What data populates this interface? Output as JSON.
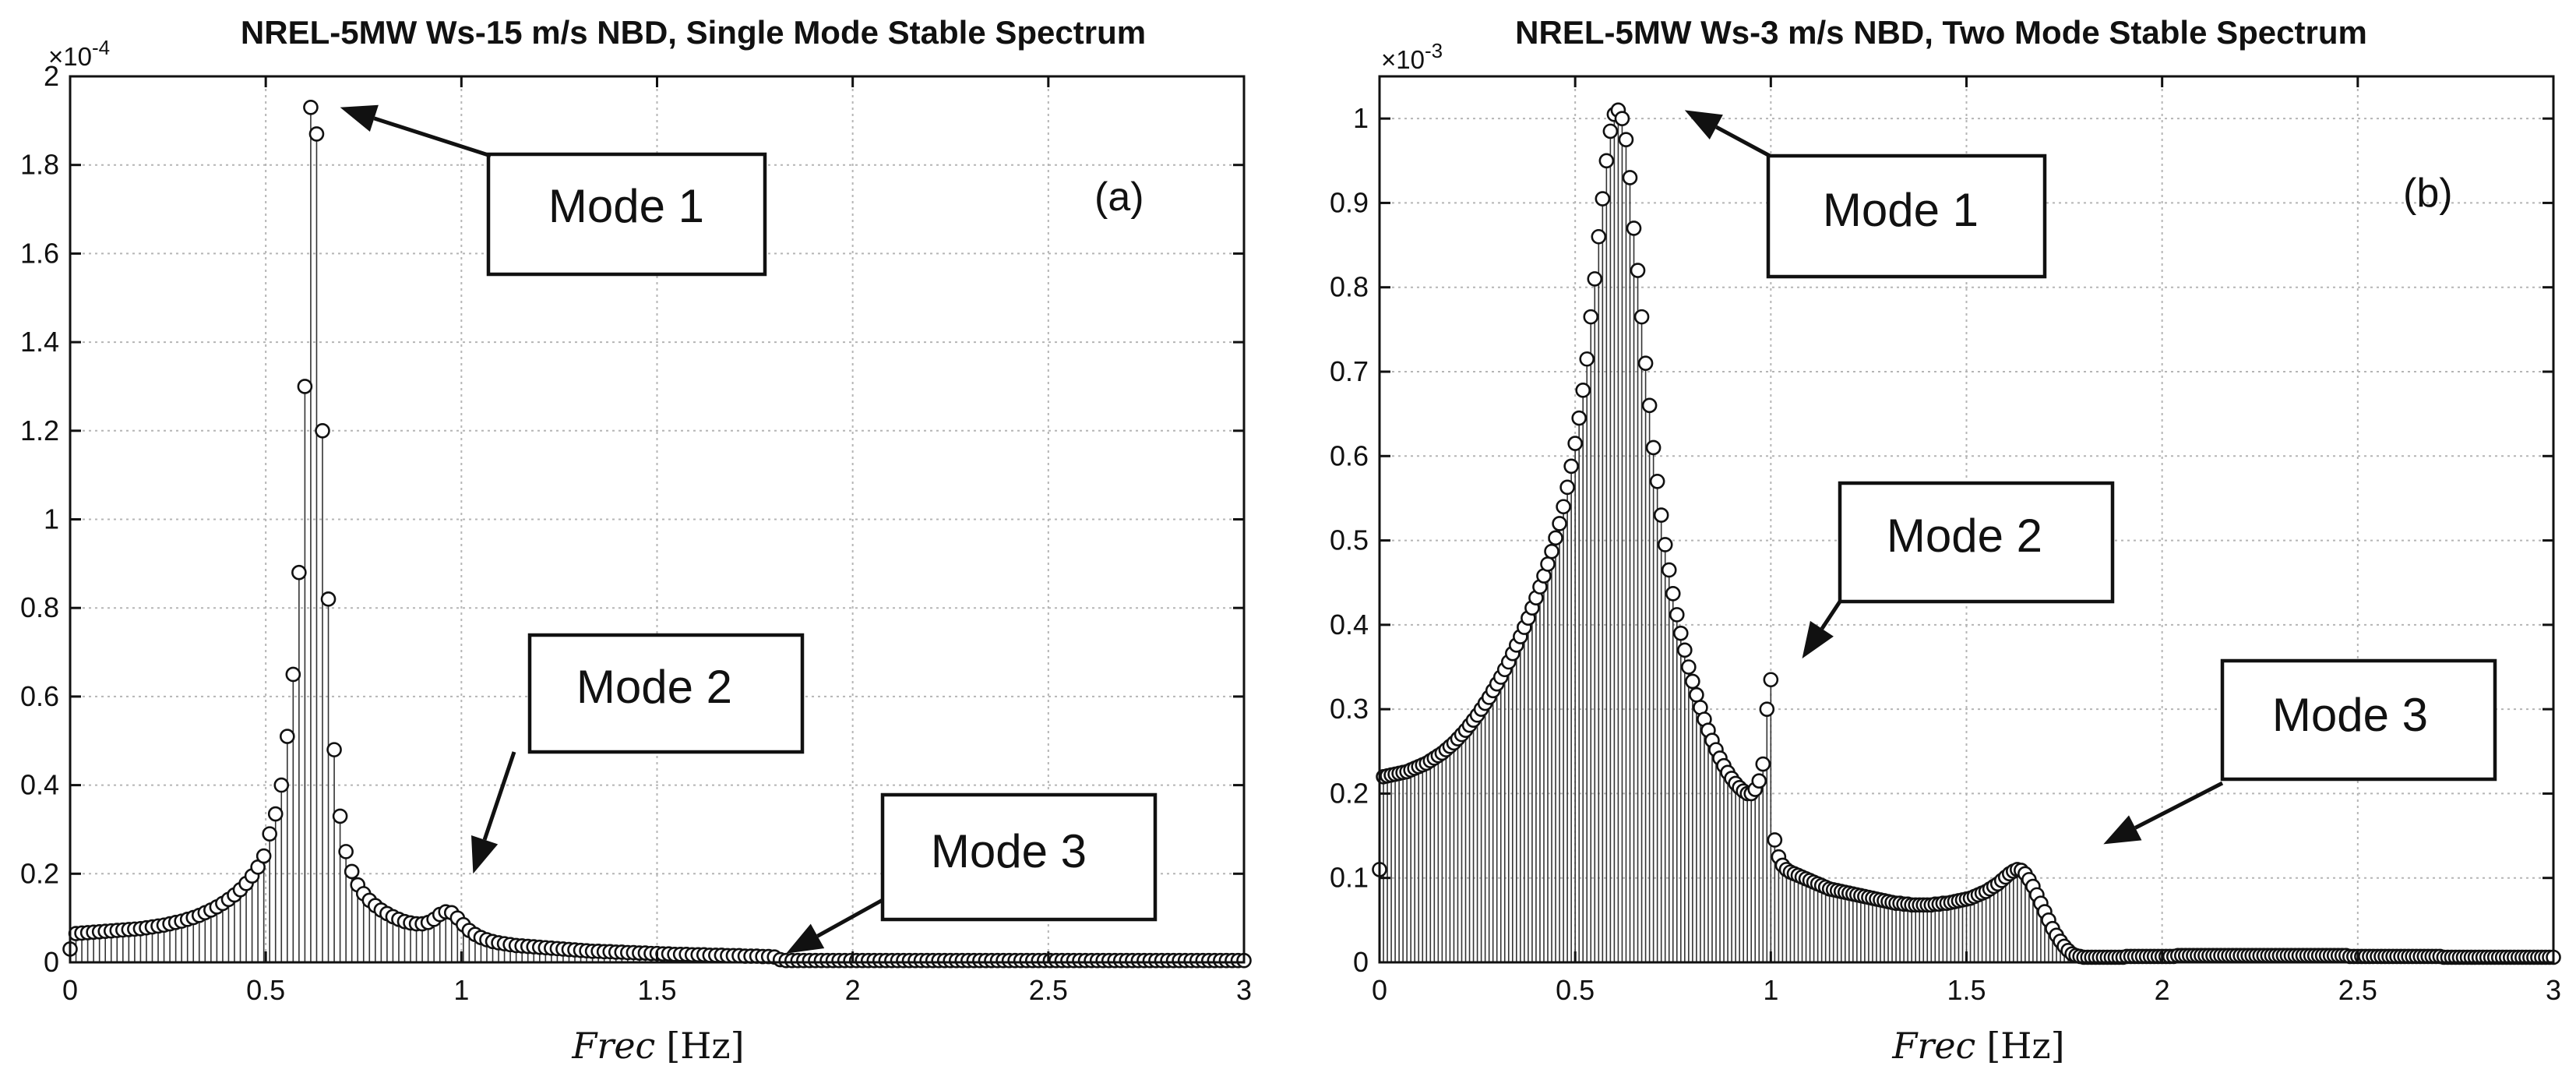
{
  "chart_data": [
    {
      "id": "a",
      "type": "stem",
      "title": "NREL-5MW Ws-15 m/s NBD, Single Mode Stable Spectrum",
      "xlabel_italic": "Frec",
      "xlabel_unit": "[Hz]",
      "ylabel": "",
      "panel_label": "(a)",
      "xlim": [
        0,
        3
      ],
      "ylim": [
        0,
        2
      ],
      "y_exponent_label": "×10",
      "y_exponent_value": "-4",
      "x_ticks": [
        0,
        0.5,
        1,
        1.5,
        2,
        2.5,
        3
      ],
      "x_tick_labels": [
        "0",
        "0.5",
        "1",
        "1.5",
        "2",
        "2.5",
        "3"
      ],
      "y_ticks": [
        0,
        0.2,
        0.4,
        0.6,
        0.8,
        1,
        1.2,
        1.4,
        1.6,
        1.8,
        2
      ],
      "y_tick_labels": [
        "0",
        "0.2",
        "0.4",
        "0.6",
        "0.8",
        "1",
        "1.2",
        "1.4",
        "1.6",
        "1.8",
        "2"
      ],
      "grid": true,
      "series": [
        {
          "name": "spectrum",
          "x_start": 0,
          "x_step": 0.015,
          "values": [
            0.03,
            0.065,
            0.066,
            0.067,
            0.068,
            0.069,
            0.07,
            0.071,
            0.072,
            0.073,
            0.074,
            0.075,
            0.076,
            0.078,
            0.08,
            0.082,
            0.084,
            0.087,
            0.09,
            0.093,
            0.097,
            0.101,
            0.106,
            0.112,
            0.118,
            0.125,
            0.133,
            0.142,
            0.152,
            0.164,
            0.178,
            0.195,
            0.215,
            0.24,
            0.29,
            0.335,
            0.4,
            0.51,
            0.65,
            0.88,
            1.3,
            1.93,
            1.87,
            1.2,
            0.82,
            0.48,
            0.33,
            0.25,
            0.205,
            0.175,
            0.155,
            0.14,
            0.128,
            0.118,
            0.11,
            0.103,
            0.097,
            0.092,
            0.089,
            0.087,
            0.087,
            0.09,
            0.097,
            0.108,
            0.114,
            0.112,
            0.1,
            0.085,
            0.072,
            0.063,
            0.056,
            0.051,
            0.047,
            0.044,
            0.042,
            0.04,
            0.038,
            0.037,
            0.036,
            0.035,
            0.034,
            0.033,
            0.032,
            0.031,
            0.03,
            0.029,
            0.028,
            0.027,
            0.026,
            0.025,
            0.025,
            0.024,
            0.024,
            0.023,
            0.023,
            0.022,
            0.022,
            0.021,
            0.021,
            0.02,
            0.02,
            0.019,
            0.019,
            0.018,
            0.018,
            0.018,
            0.017,
            0.017,
            0.017,
            0.016,
            0.016,
            0.016,
            0.015,
            0.015,
            0.015,
            0.014,
            0.014,
            0.014,
            0.013,
            0.013,
            0.012,
            0.006,
            0.004,
            0.004,
            0.004,
            0.004,
            0.004,
            0.004,
            0.004,
            0.004,
            0.004,
            0.004,
            0.004,
            0.004,
            0.004,
            0.004,
            0.004,
            0.004,
            0.004,
            0.004,
            0.004,
            0.004,
            0.004,
            0.004,
            0.004,
            0.004,
            0.004,
            0.004,
            0.004,
            0.004,
            0.004,
            0.004,
            0.004,
            0.004,
            0.004,
            0.004,
            0.004,
            0.004,
            0.004,
            0.004,
            0.004,
            0.004,
            0.004,
            0.004,
            0.004,
            0.004,
            0.004,
            0.004,
            0.004,
            0.004,
            0.004,
            0.004,
            0.004,
            0.004,
            0.004,
            0.004,
            0.004,
            0.004,
            0.004,
            0.004,
            0.004,
            0.004,
            0.004,
            0.004,
            0.004,
            0.004,
            0.004,
            0.004,
            0.004,
            0.004,
            0.004,
            0.004,
            0.004,
            0.004,
            0.004,
            0.004,
            0.004,
            0.004,
            0.004,
            0.004,
            0.004,
            0.004,
            0.004,
            0.004
          ]
        }
      ],
      "annotations": [
        {
          "text": "Mode 1",
          "points_to": [
            0.69,
            1.93
          ]
        },
        {
          "text": "Mode 2",
          "points_to": [
            1.03,
            0.2
          ]
        },
        {
          "text": "Mode 3",
          "points_to": [
            1.83,
            0.02
          ]
        }
      ]
    },
    {
      "id": "b",
      "type": "stem",
      "title": "NREL-5MW Ws-3 m/s NBD, Two Mode Stable Spectrum",
      "xlabel_italic": "Frec",
      "xlabel_unit": "[Hz]",
      "ylabel": "",
      "panel_label": "(b)",
      "xlim": [
        0,
        3
      ],
      "ylim": [
        0,
        1.05
      ],
      "y_exponent_label": "×10",
      "y_exponent_value": "-3",
      "x_ticks": [
        0,
        0.5,
        1,
        1.5,
        2,
        2.5,
        3
      ],
      "x_tick_labels": [
        "0",
        "0.5",
        "1",
        "1.5",
        "2",
        "2.5",
        "3"
      ],
      "y_ticks": [
        0,
        0.1,
        0.2,
        0.3,
        0.4,
        0.5,
        0.6,
        0.7,
        0.8,
        0.9,
        1
      ],
      "y_tick_labels": [
        "0",
        "0.1",
        "0.2",
        "0.3",
        "0.4",
        "0.5",
        "0.6",
        "0.7",
        "0.8",
        "0.9",
        "1"
      ],
      "grid": true,
      "series": [
        {
          "name": "spectrum",
          "x_start": 0,
          "x_step": 0.01,
          "values": [
            0.11,
            0.22,
            0.221,
            0.222,
            0.223,
            0.224,
            0.225,
            0.226,
            0.228,
            0.23,
            0.232,
            0.234,
            0.236,
            0.239,
            0.242,
            0.245,
            0.248,
            0.252,
            0.256,
            0.26,
            0.265,
            0.27,
            0.275,
            0.281,
            0.287,
            0.293,
            0.3,
            0.307,
            0.314,
            0.322,
            0.33,
            0.338,
            0.347,
            0.356,
            0.366,
            0.376,
            0.386,
            0.397,
            0.408,
            0.42,
            0.432,
            0.445,
            0.458,
            0.472,
            0.487,
            0.503,
            0.52,
            0.54,
            0.563,
            0.588,
            0.615,
            0.645,
            0.678,
            0.715,
            0.765,
            0.81,
            0.86,
            0.905,
            0.95,
            0.985,
            1.005,
            1.01,
            1.0,
            0.975,
            0.93,
            0.87,
            0.82,
            0.765,
            0.71,
            0.66,
            0.61,
            0.57,
            0.53,
            0.495,
            0.465,
            0.437,
            0.412,
            0.39,
            0.37,
            0.35,
            0.333,
            0.317,
            0.302,
            0.288,
            0.275,
            0.263,
            0.252,
            0.242,
            0.233,
            0.225,
            0.218,
            0.212,
            0.207,
            0.203,
            0.2,
            0.2,
            0.205,
            0.215,
            0.235,
            0.3,
            0.335,
            0.145,
            0.125,
            0.115,
            0.11,
            0.107,
            0.105,
            0.103,
            0.101,
            0.099,
            0.097,
            0.095,
            0.093,
            0.091,
            0.089,
            0.087,
            0.086,
            0.085,
            0.084,
            0.083,
            0.082,
            0.081,
            0.08,
            0.079,
            0.078,
            0.077,
            0.076,
            0.075,
            0.074,
            0.073,
            0.072,
            0.071,
            0.07,
            0.07,
            0.069,
            0.069,
            0.068,
            0.068,
            0.068,
            0.068,
            0.068,
            0.068,
            0.069,
            0.069,
            0.07,
            0.07,
            0.071,
            0.072,
            0.073,
            0.074,
            0.075,
            0.076,
            0.078,
            0.08,
            0.082,
            0.084,
            0.087,
            0.09,
            0.093,
            0.097,
            0.101,
            0.105,
            0.108,
            0.11,
            0.109,
            0.105,
            0.098,
            0.09,
            0.08,
            0.07,
            0.06,
            0.05,
            0.04,
            0.032,
            0.025,
            0.019,
            0.014,
            0.01,
            0.008,
            0.007,
            0.006,
            0.006,
            0.006,
            0.006,
            0.006,
            0.006,
            0.006,
            0.006,
            0.006,
            0.006,
            0.006,
            0.007,
            0.007,
            0.007,
            0.007,
            0.007,
            0.007,
            0.007,
            0.007,
            0.007,
            0.007,
            0.007,
            0.007,
            0.007,
            0.008,
            0.008,
            0.008,
            0.008,
            0.008,
            0.008,
            0.008,
            0.008,
            0.008,
            0.008,
            0.008,
            0.008,
            0.008,
            0.008,
            0.008,
            0.008,
            0.008,
            0.008,
            0.008,
            0.008,
            0.008,
            0.008,
            0.008,
            0.008,
            0.008,
            0.008,
            0.008,
            0.008,
            0.008,
            0.008,
            0.008,
            0.008,
            0.008,
            0.008,
            0.008,
            0.008,
            0.008,
            0.008,
            0.008,
            0.008,
            0.008,
            0.008,
            0.008,
            0.008,
            0.007,
            0.007,
            0.007,
            0.007,
            0.007,
            0.007,
            0.007,
            0.007,
            0.007,
            0.007,
            0.007,
            0.007,
            0.007,
            0.007,
            0.007,
            0.007,
            0.007,
            0.007,
            0.007,
            0.007,
            0.007,
            0.007,
            0.007,
            0.007,
            0.006,
            0.006,
            0.006,
            0.006,
            0.006,
            0.006,
            0.006,
            0.006,
            0.006,
            0.006,
            0.006,
            0.006,
            0.006,
            0.006,
            0.006,
            0.006,
            0.006,
            0.006,
            0.006,
            0.006,
            0.006,
            0.006,
            0.006,
            0.006,
            0.006,
            0.006,
            0.006,
            0.006,
            0.006,
            0.006,
            0.006,
            0.006
          ]
        }
      ],
      "annotations": [
        {
          "text": "Mode 1",
          "points_to": [
            0.78,
            1.01
          ]
        },
        {
          "text": "Mode 2",
          "points_to": [
            1.08,
            0.36
          ]
        },
        {
          "text": "Mode 3",
          "points_to": [
            1.85,
            0.14
          ]
        }
      ]
    }
  ]
}
